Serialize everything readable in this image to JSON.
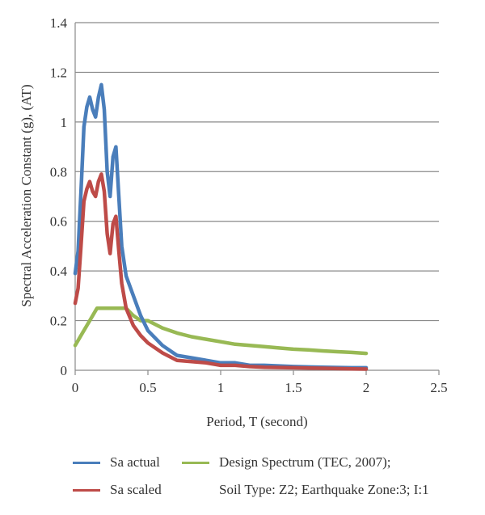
{
  "chart_data": {
    "type": "line",
    "xlabel": "Period, T (second)",
    "ylabel": "Spectral Acceleration Constant (g), (AT)",
    "xlim": [
      0,
      2.5
    ],
    "ylim": [
      0,
      1.4
    ],
    "xticks": [
      0,
      0.5,
      1,
      1.5,
      2,
      2.5
    ],
    "xtick_labels": [
      "0",
      "0.5",
      "1",
      "1.5",
      "2",
      "2.5"
    ],
    "yticks": [
      0,
      0.2,
      0.4,
      0.6,
      0.8,
      1,
      1.2,
      1.4
    ],
    "ytick_labels": [
      "0",
      "0.2",
      "0.4",
      "0.6",
      "0.8",
      "1",
      "1.2",
      "1.4"
    ],
    "grid": "horizontal",
    "legend_position": "bottom",
    "series": [
      {
        "name": "Sa actual",
        "color": "#4a7ebb",
        "x": [
          0,
          0.02,
          0.04,
          0.06,
          0.08,
          0.1,
          0.12,
          0.14,
          0.16,
          0.18,
          0.2,
          0.22,
          0.24,
          0.26,
          0.28,
          0.3,
          0.32,
          0.35,
          0.4,
          0.45,
          0.5,
          0.6,
          0.7,
          0.8,
          0.9,
          1.0,
          1.1,
          1.2,
          1.3,
          1.5,
          1.7,
          1.9,
          2.0
        ],
        "y": [
          0.39,
          0.48,
          0.72,
          0.98,
          1.06,
          1.1,
          1.05,
          1.02,
          1.1,
          1.15,
          1.05,
          0.8,
          0.7,
          0.86,
          0.9,
          0.7,
          0.5,
          0.38,
          0.3,
          0.22,
          0.16,
          0.1,
          0.06,
          0.05,
          0.04,
          0.03,
          0.03,
          0.02,
          0.02,
          0.015,
          0.012,
          0.01,
          0.01
        ]
      },
      {
        "name": "Sa scaled",
        "color": "#be4b48",
        "x": [
          0,
          0.02,
          0.04,
          0.06,
          0.08,
          0.1,
          0.12,
          0.14,
          0.16,
          0.18,
          0.2,
          0.22,
          0.24,
          0.26,
          0.28,
          0.3,
          0.32,
          0.35,
          0.4,
          0.45,
          0.5,
          0.6,
          0.7,
          0.8,
          0.9,
          1.0,
          1.1,
          1.2,
          1.3,
          1.5,
          1.7,
          1.9,
          2.0
        ],
        "y": [
          0.27,
          0.33,
          0.5,
          0.68,
          0.73,
          0.76,
          0.72,
          0.7,
          0.76,
          0.79,
          0.72,
          0.55,
          0.47,
          0.59,
          0.62,
          0.48,
          0.35,
          0.25,
          0.18,
          0.14,
          0.11,
          0.07,
          0.04,
          0.035,
          0.03,
          0.02,
          0.02,
          0.015,
          0.012,
          0.01,
          0.008,
          0.006,
          0.005
        ]
      },
      {
        "name": "Design Spectrum (TEC, 2007);",
        "color": "#98b954",
        "x": [
          0,
          0.05,
          0.1,
          0.15,
          0.2,
          0.25,
          0.3,
          0.35,
          0.4,
          0.45,
          0.5,
          0.6,
          0.7,
          0.8,
          0.9,
          1.0,
          1.1,
          1.2,
          1.3,
          1.4,
          1.5,
          1.6,
          1.7,
          1.8,
          1.9,
          2.0
        ],
        "y": [
          0.1,
          0.15,
          0.2,
          0.25,
          0.25,
          0.25,
          0.25,
          0.25,
          0.22,
          0.2,
          0.2,
          0.17,
          0.15,
          0.135,
          0.125,
          0.115,
          0.105,
          0.1,
          0.095,
          0.09,
          0.085,
          0.082,
          0.078,
          0.075,
          0.072,
          0.068
        ]
      }
    ]
  },
  "legend": {
    "note": "Soil Type: Z2; Earthquake Zone:3; I:1"
  }
}
